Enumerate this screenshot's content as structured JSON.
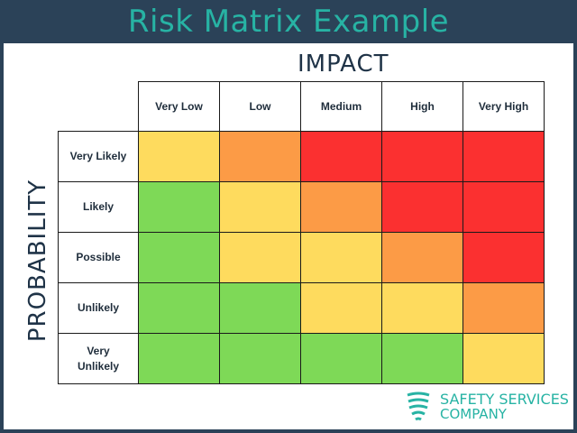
{
  "header": {
    "title": "Risk Matrix Example"
  },
  "axes": {
    "impact": "IMPACT",
    "probability": "PROBABILITY"
  },
  "impact_levels": [
    "Very Low",
    "Low",
    "Medium",
    "High",
    "Very High"
  ],
  "probability_levels": [
    "Very Likely",
    "Likely",
    "Possible",
    "Unlikely",
    "Very\nUnlikely"
  ],
  "matrix": [
    [
      "yellow",
      "orange",
      "red",
      "red",
      "red"
    ],
    [
      "green",
      "yellow",
      "orange",
      "red",
      "red"
    ],
    [
      "green",
      "yellow",
      "yellow",
      "orange",
      "red"
    ],
    [
      "green",
      "green",
      "yellow",
      "yellow",
      "orange"
    ],
    [
      "green",
      "green",
      "green",
      "green",
      "yellow"
    ]
  ],
  "colors": {
    "green": "#7ed957",
    "yellow": "#fedb5e",
    "orange": "#fc9b46",
    "red": "#fb3030",
    "header_bg": "#2b4258",
    "accent": "#27b3a4"
  },
  "logo": {
    "line1": "SAFETY SERVICES",
    "line2": "COMPANY",
    "icon": "shield-icon"
  }
}
